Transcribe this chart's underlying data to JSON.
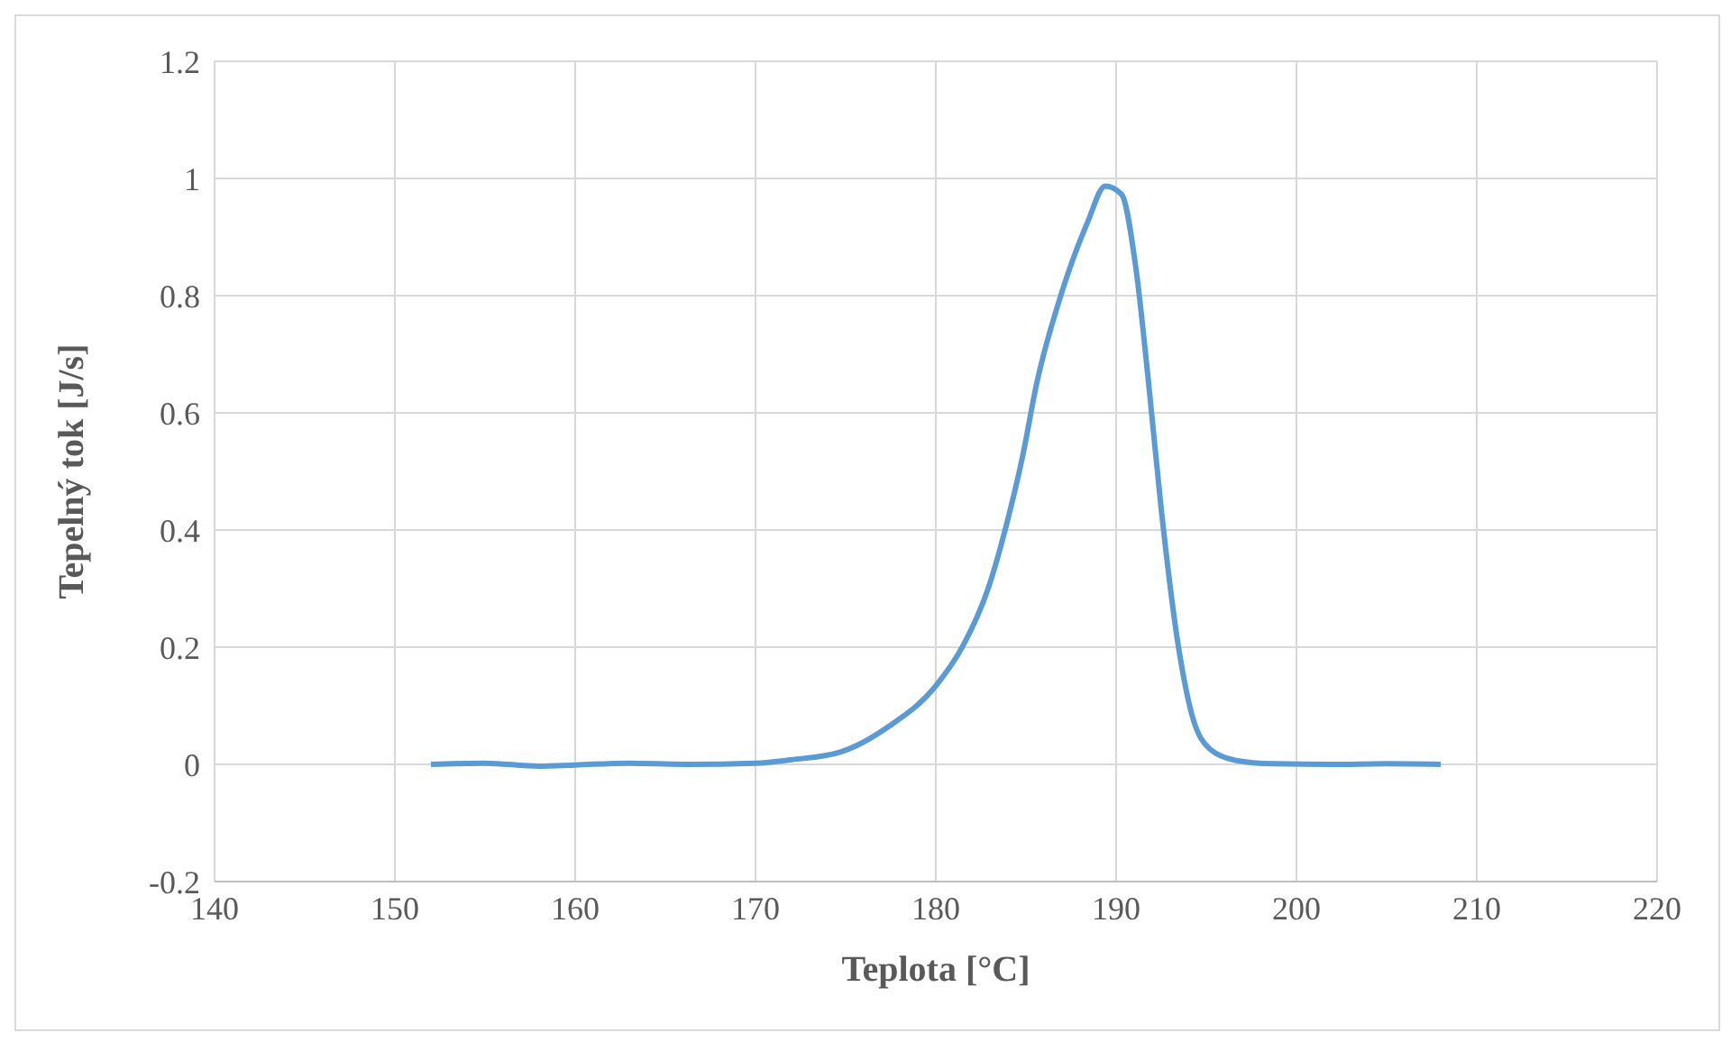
{
  "chart_data": {
    "type": "line",
    "xlabel": "Teplota [°C]",
    "ylabel": "Tepelný tok [J/s]",
    "xlim": [
      140,
      220
    ],
    "xticks": [
      140,
      150,
      160,
      170,
      180,
      190,
      200,
      210,
      220
    ],
    "ylim": [
      -0.2,
      1.2
    ],
    "yticks": [
      -0.2,
      0,
      0.2,
      0.4,
      0.6,
      0.8,
      1,
      1.2
    ],
    "grid": true,
    "marker": "none",
    "line_style": "solid",
    "series": [
      {
        "color": "#5b9bd5",
        "x": [
          152,
          155,
          158,
          160,
          163,
          166,
          170,
          172,
          174.7,
          177.4,
          180,
          181.5,
          182.9,
          183.9,
          184.8,
          185.6,
          187,
          188.4,
          189.4,
          190.3,
          191.1,
          191.8,
          192.5,
          193.4,
          194.2,
          195.2,
          196.6,
          198.7,
          202,
          205,
          208
        ],
        "values": [
          0,
          0.002,
          -0.003,
          -0.001,
          0.002,
          0,
          0.002,
          0.008,
          0.021,
          0.065,
          0.134,
          0.202,
          0.3,
          0.407,
          0.524,
          0.651,
          0.807,
          0.924,
          0.987,
          0.973,
          0.846,
          0.651,
          0.436,
          0.212,
          0.085,
          0.026,
          0.007,
          0.001,
          0,
          0.001,
          0
        ]
      }
    ]
  }
}
